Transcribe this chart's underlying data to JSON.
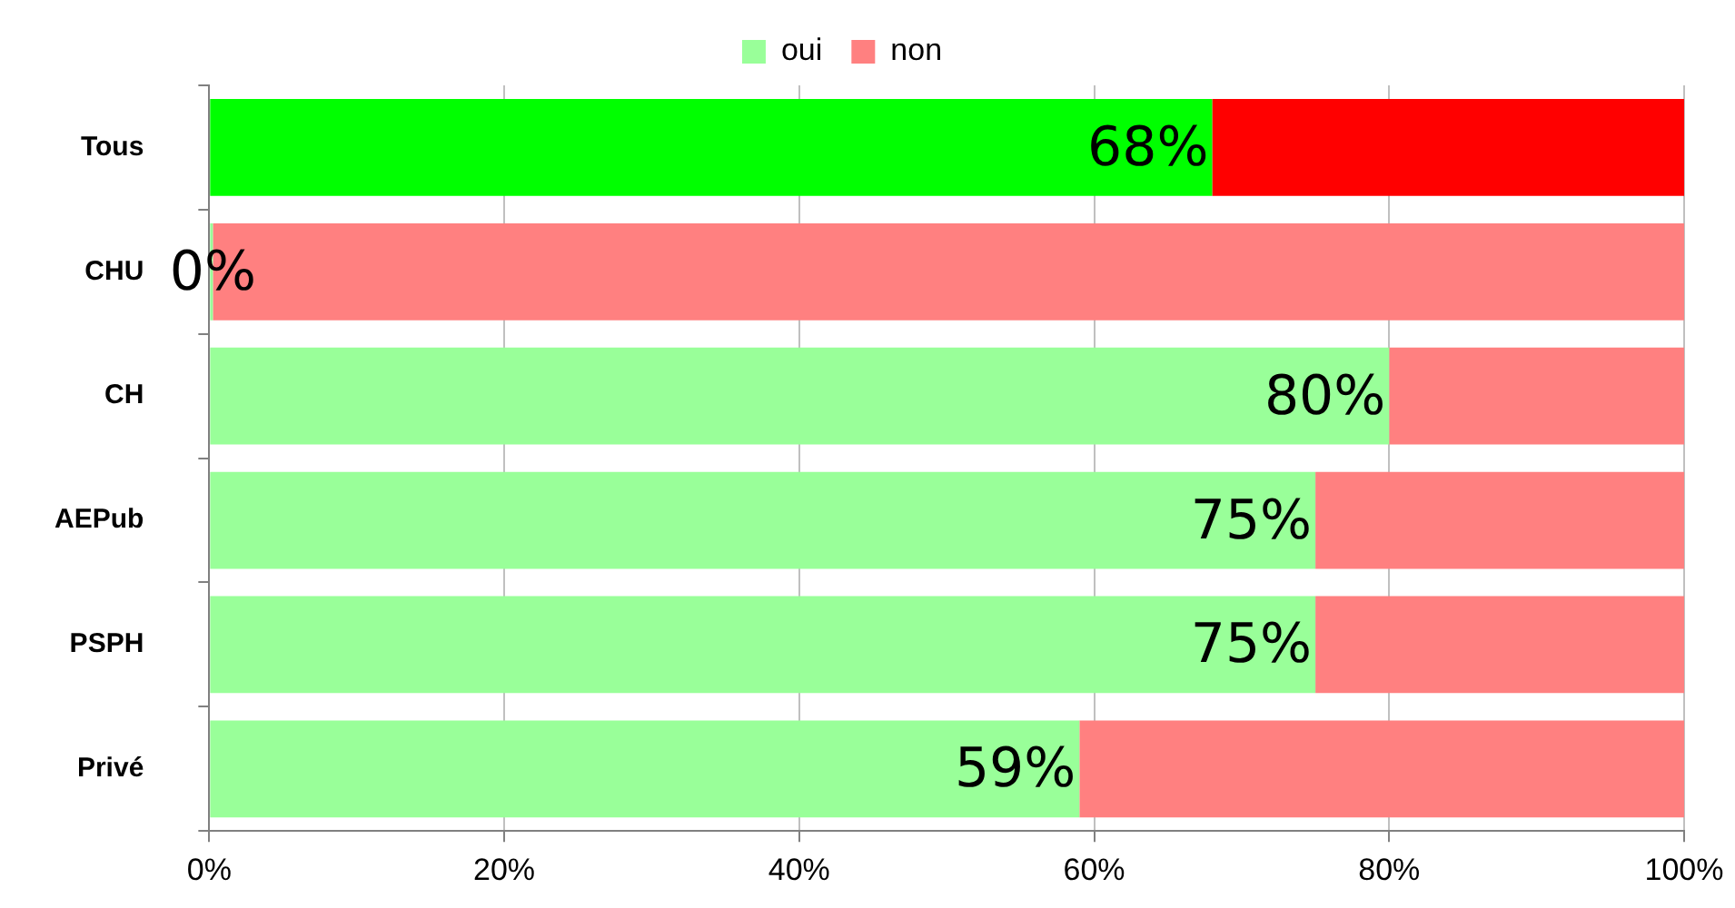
{
  "chart_data": {
    "type": "bar",
    "orientation": "horizontal",
    "stacked": true,
    "categories": [
      "Tous",
      "CHU",
      "CH",
      "AEPub",
      "PSPH",
      "Privé"
    ],
    "series": [
      {
        "name": "oui",
        "color": "#99ff99",
        "colors": [
          "#00ff00",
          "#99ff99",
          "#99ff99",
          "#99ff99",
          "#99ff99",
          "#99ff99"
        ],
        "values": [
          68,
          0,
          80,
          75,
          75,
          59
        ],
        "value_labels": [
          "68%",
          "0%",
          "80%",
          "75%",
          "75%",
          "59%"
        ]
      },
      {
        "name": "non",
        "color": "#ff8080",
        "colors": [
          "#ff0000",
          "#ff8080",
          "#ff8080",
          "#ff8080",
          "#ff8080",
          "#ff8080"
        ],
        "values": [
          32,
          100,
          20,
          25,
          25,
          41
        ]
      }
    ],
    "xlim": [
      0,
      100
    ],
    "xticks": [
      {
        "value": 0,
        "label": "0%"
      },
      {
        "value": 20,
        "label": "20%"
      },
      {
        "value": 40,
        "label": "40%"
      },
      {
        "value": 60,
        "label": "60%"
      },
      {
        "value": 80,
        "label": "80%"
      },
      {
        "value": 100,
        "label": "100%"
      }
    ],
    "grid": "x",
    "legend": "top"
  }
}
